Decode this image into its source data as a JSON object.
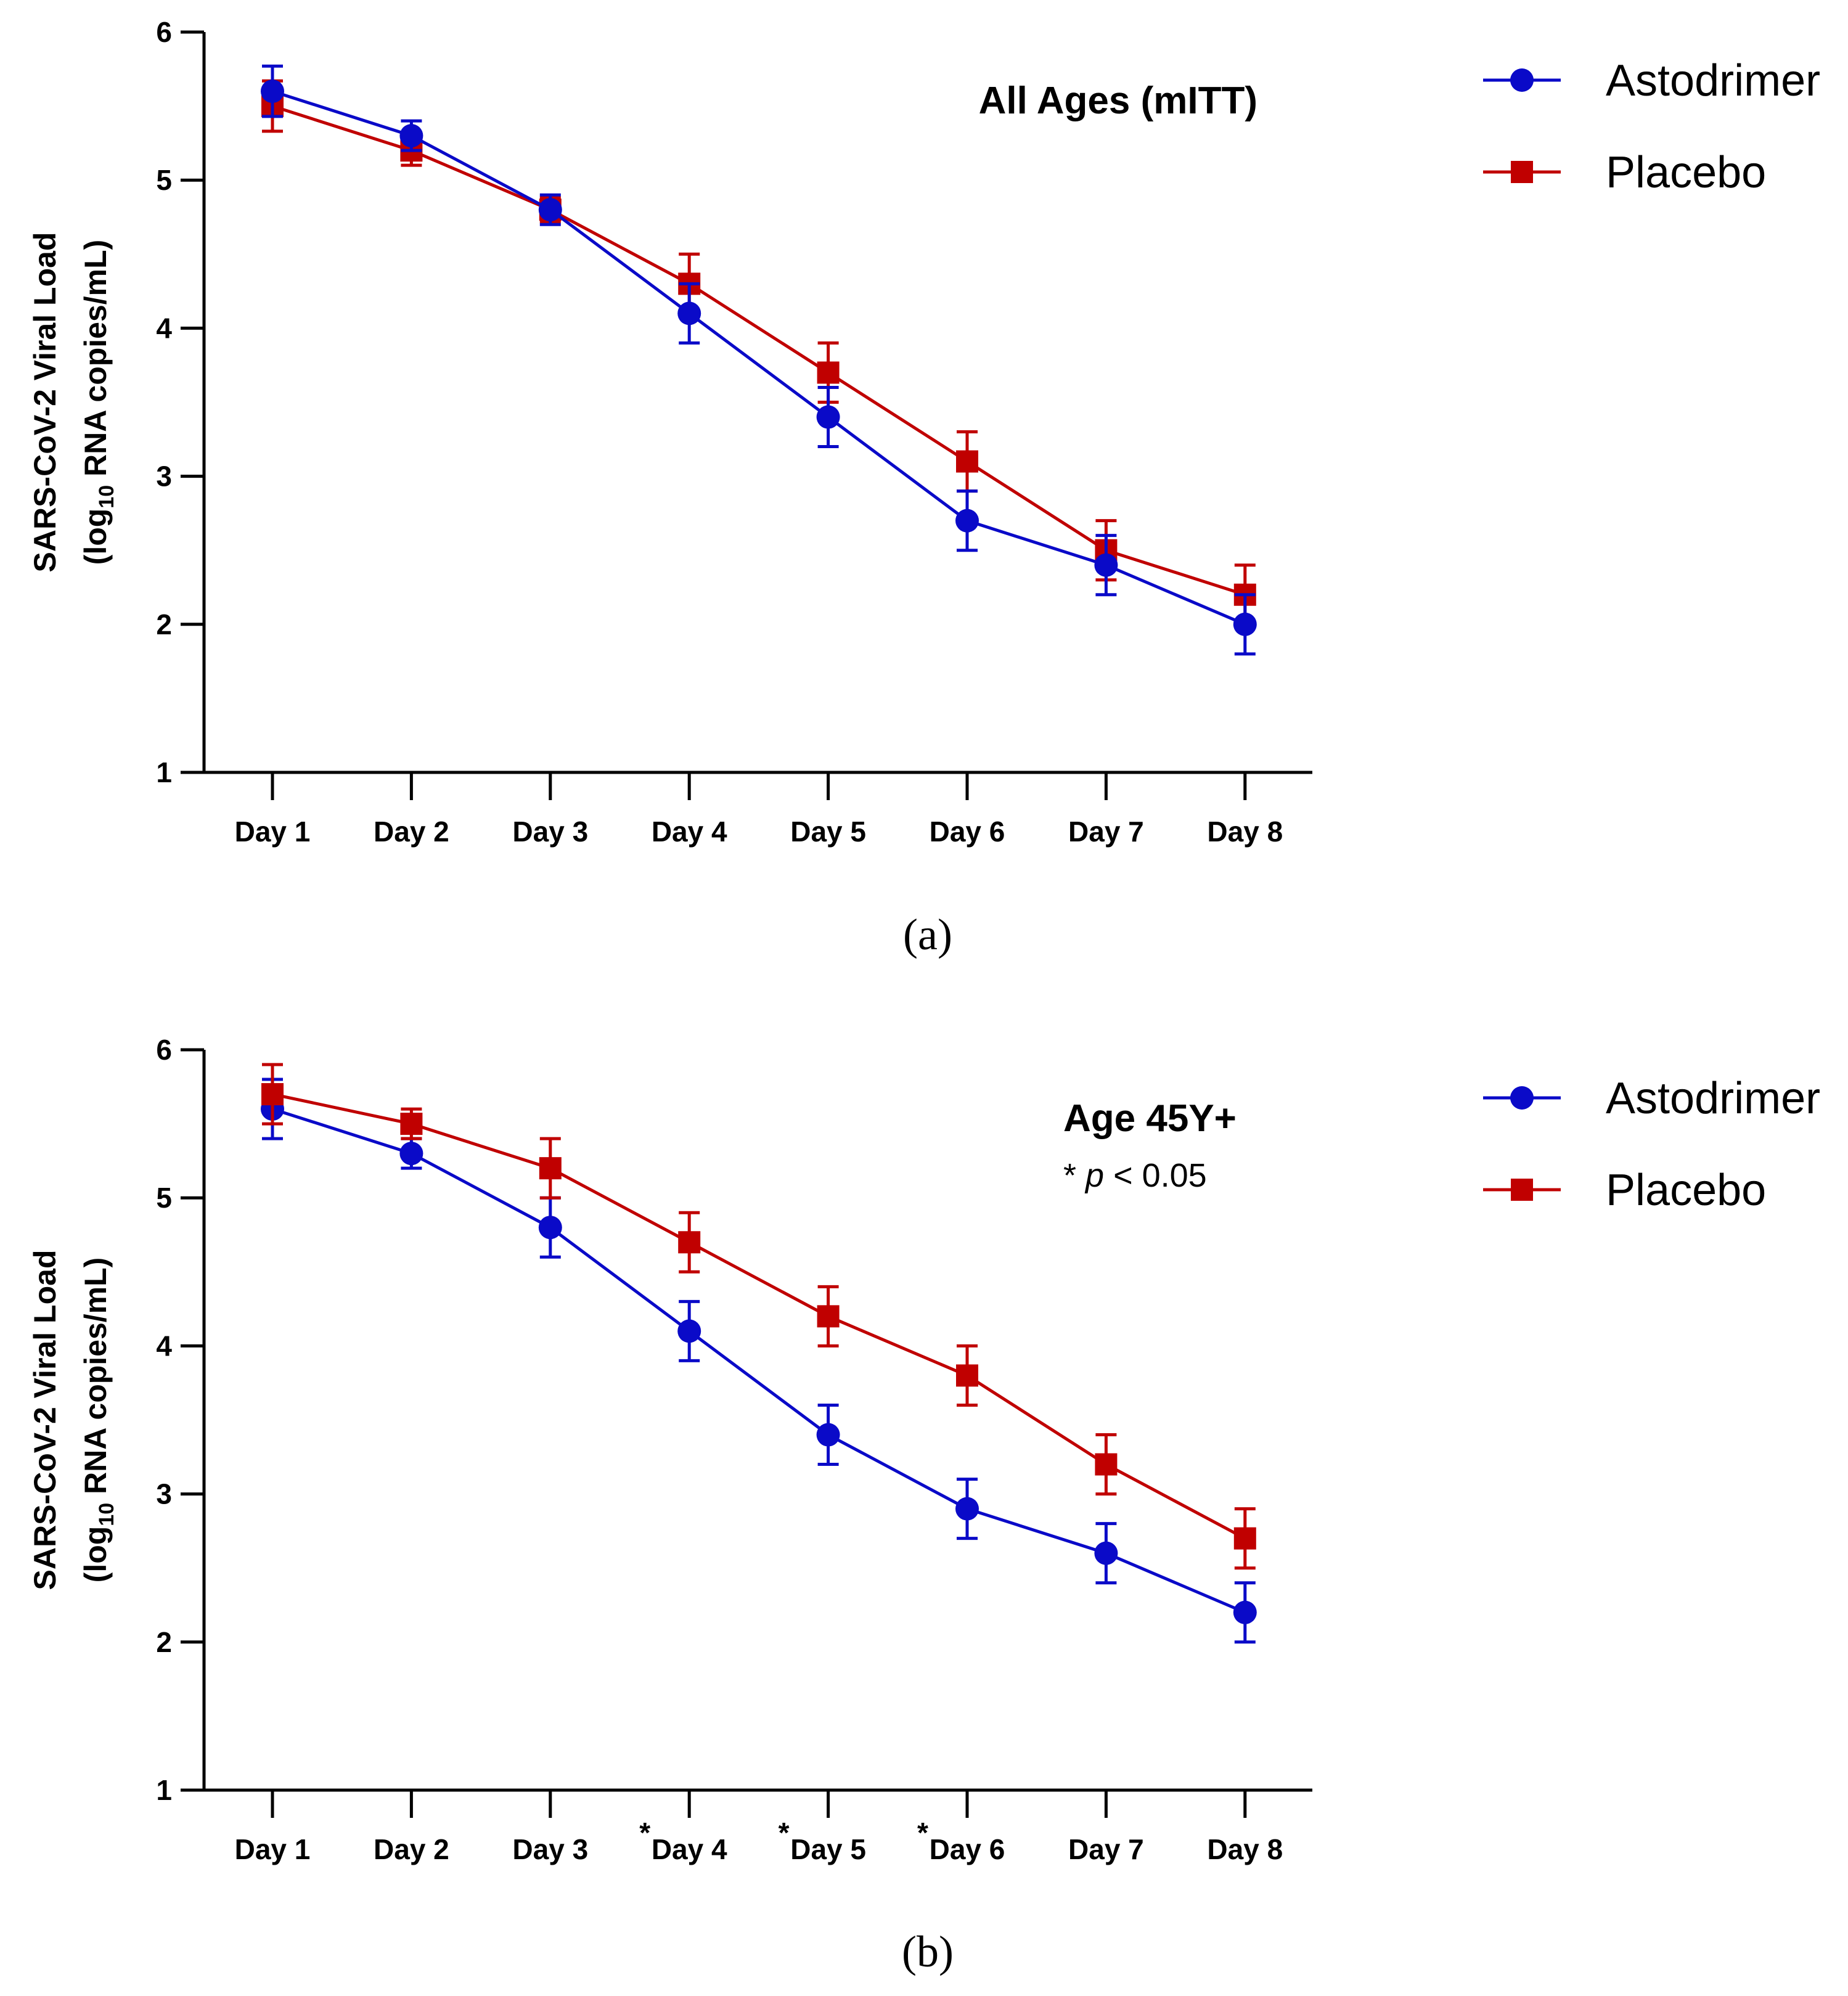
{
  "colors": {
    "astodrimer": "#0a0ac8",
    "placebo": "#c00000",
    "axis": "#000000"
  },
  "chart_data": [
    {
      "type": "line",
      "panel_label": "(a)",
      "title": "All Ages (mITT)",
      "subtitle": "",
      "ylabel_line1": "SARS-CoV-2 Viral Load",
      "ylabel_line2_pre": "(log",
      "ylabel_line2_sub": "10",
      "ylabel_line2_post": " RNA copies/mL)",
      "ylim": [
        1,
        6
      ],
      "yticks": [
        "1",
        "2",
        "3",
        "4",
        "5",
        "6"
      ],
      "categories": [
        "Day 1",
        "Day 2",
        "Day 3",
        "Day 4",
        "Day 5",
        "Day 6",
        "Day 7",
        "Day 8"
      ],
      "significance_marks": [
        "",
        "",
        "",
        "",
        "",
        "",
        "",
        ""
      ],
      "legend": {
        "placement": "top-right-outside",
        "entries": [
          "Astodrimer",
          "Placebo"
        ]
      },
      "series": [
        {
          "name": "Astodrimer",
          "marker": "circle",
          "values": [
            5.6,
            5.3,
            4.8,
            4.1,
            3.4,
            2.7,
            2.4,
            2.0
          ],
          "errors": [
            0.17,
            0.1,
            0.1,
            0.2,
            0.2,
            0.2,
            0.2,
            0.2
          ]
        },
        {
          "name": "Placebo",
          "marker": "square",
          "values": [
            5.5,
            5.2,
            4.8,
            4.3,
            3.7,
            3.1,
            2.5,
            2.2
          ],
          "errors": [
            0.17,
            0.1,
            0.08,
            0.2,
            0.2,
            0.2,
            0.2,
            0.2
          ]
        }
      ]
    },
    {
      "type": "line",
      "panel_label": "(b)",
      "title": "Age 45Y+",
      "subtitle_star": "* ",
      "subtitle_p": "p",
      "subtitle_rest": " < 0.05",
      "ylabel_line1": "SARS-CoV-2 Viral Load",
      "ylabel_line2_pre": "(log",
      "ylabel_line2_sub": "10",
      "ylabel_line2_post": " RNA copies/mL)",
      "ylim": [
        1,
        6
      ],
      "yticks": [
        "1",
        "2",
        "3",
        "4",
        "5",
        "6"
      ],
      "categories": [
        "Day 1",
        "Day 2",
        "Day 3",
        "Day 4",
        "Day 5",
        "Day 6",
        "Day 7",
        "Day 8"
      ],
      "significance_marks": [
        "",
        "",
        "",
        "*",
        "*",
        "*",
        "",
        ""
      ],
      "legend": {
        "placement": "top-right-outside",
        "entries": [
          "Astodrimer",
          "Placebo"
        ]
      },
      "series": [
        {
          "name": "Astodrimer",
          "marker": "circle",
          "values": [
            5.6,
            5.3,
            4.8,
            4.1,
            3.4,
            2.9,
            2.6,
            2.2
          ],
          "errors": [
            0.2,
            0.1,
            0.2,
            0.2,
            0.2,
            0.2,
            0.2,
            0.2
          ]
        },
        {
          "name": "Placebo",
          "marker": "square",
          "values": [
            5.7,
            5.5,
            5.2,
            4.7,
            4.2,
            3.8,
            3.2,
            2.7
          ],
          "errors": [
            0.2,
            0.1,
            0.2,
            0.2,
            0.2,
            0.2,
            0.2,
            0.2
          ]
        }
      ]
    }
  ]
}
